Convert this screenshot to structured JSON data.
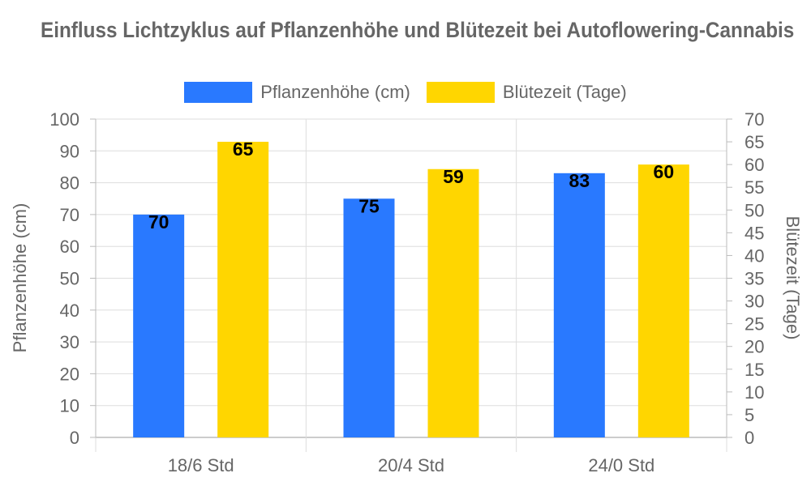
{
  "title": "Einfluss Lichtzyklus auf Pflanzenhöhe und Blütezeit bei Autoflowering-Cannabis",
  "chart_data": {
    "type": "bar",
    "categories": [
      "18/6 Std",
      "20/4 Std",
      "24/0 Std"
    ],
    "series": [
      {
        "name": "Pflanzenhöhe (cm)",
        "axis": "left",
        "color": "#2979FF",
        "values": [
          70,
          75,
          83
        ]
      },
      {
        "name": "Blütezeit (Tage)",
        "axis": "right",
        "color": "#FFD600",
        "values": [
          65,
          59,
          60
        ]
      }
    ],
    "ylabel": "Pflanzenhöhe (cm)",
    "ylim": [
      0,
      100
    ],
    "yticks": [
      "0",
      "10",
      "20",
      "30",
      "40",
      "50",
      "60",
      "70",
      "80",
      "90",
      "100"
    ],
    "y2label": "Blütezeit (Tage)",
    "y2lim": [
      0,
      70
    ],
    "y2ticks": [
      "0",
      "5",
      "10",
      "15",
      "20",
      "25",
      "30",
      "35",
      "40",
      "45",
      "50",
      "55",
      "60",
      "65",
      "70"
    ],
    "legend": "top-center",
    "grid": true,
    "data_labels": true
  }
}
